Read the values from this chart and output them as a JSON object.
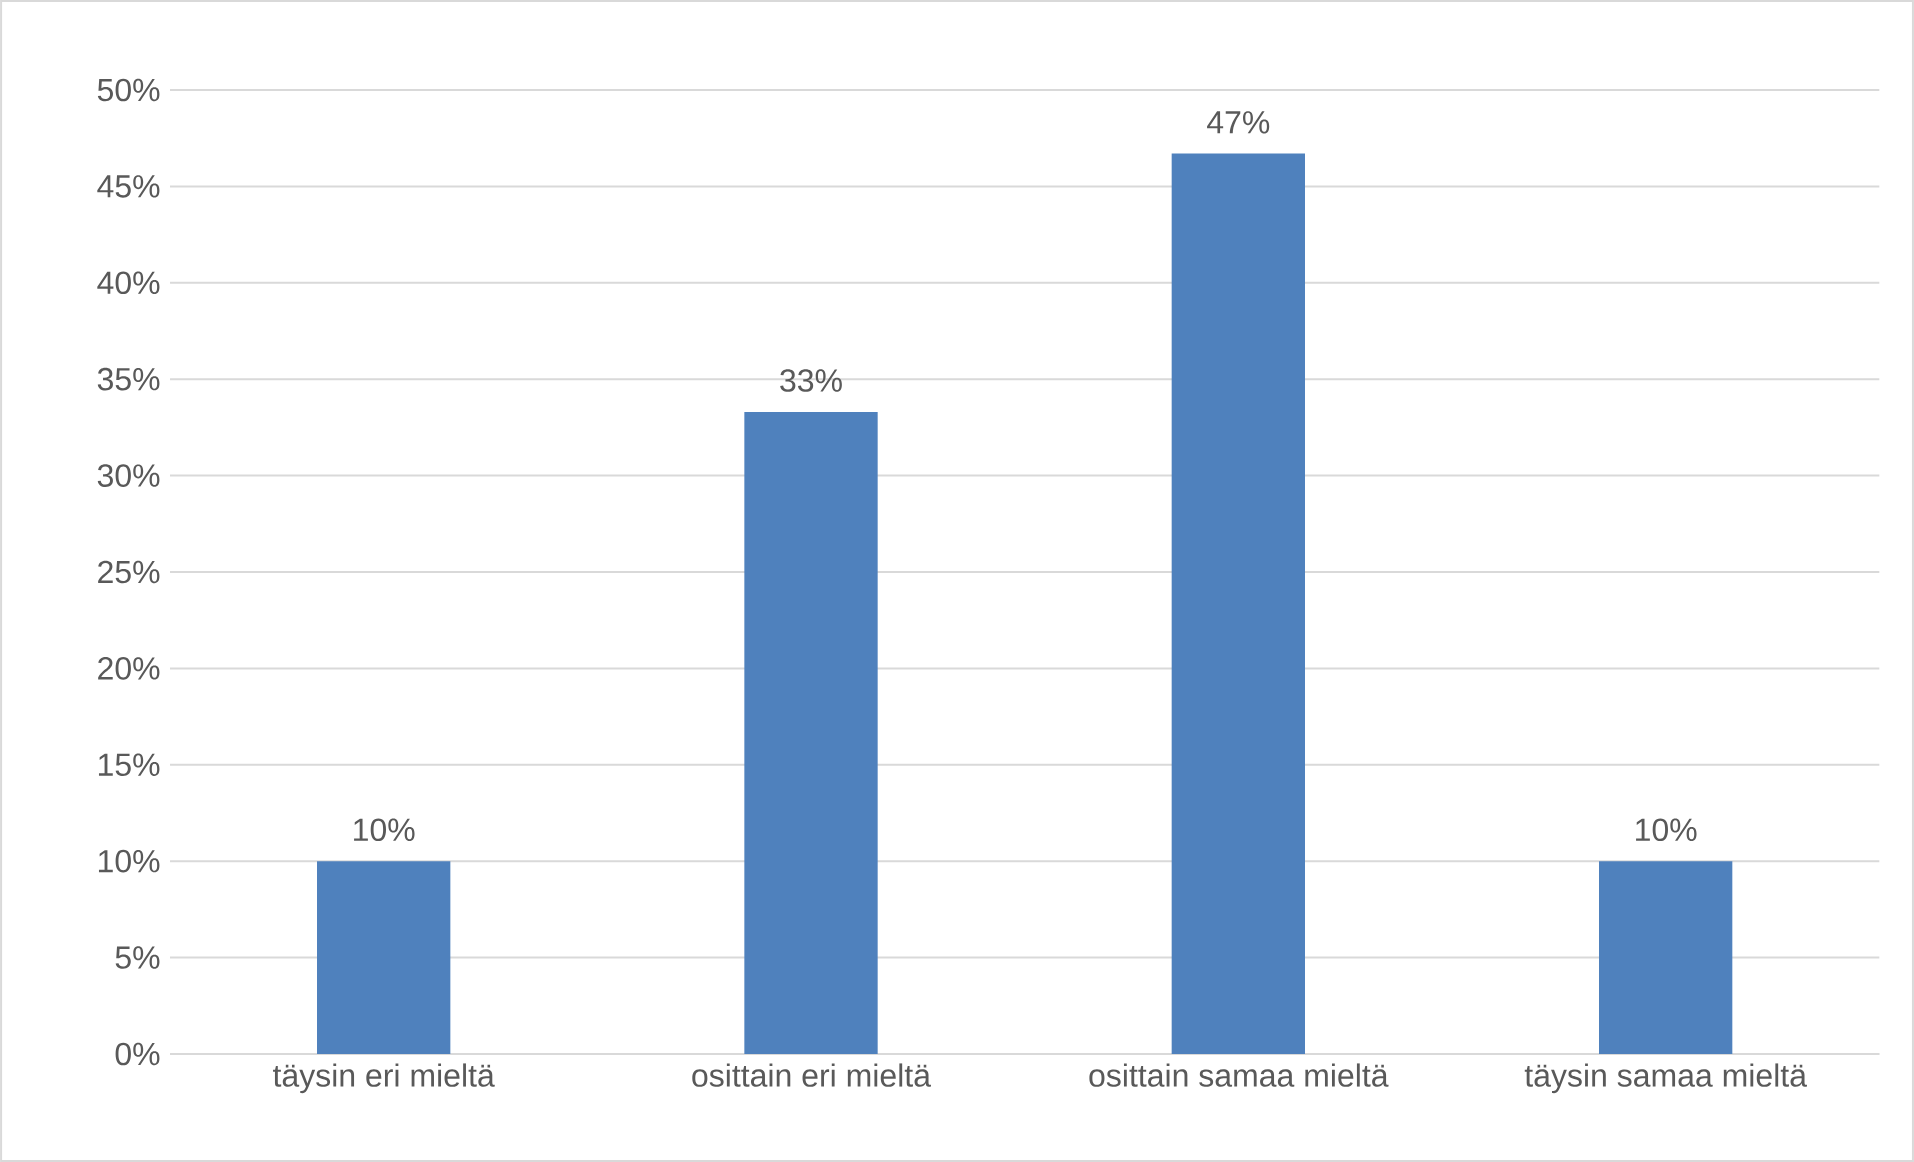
{
  "chart_data": {
    "type": "bar",
    "categories": [
      "täysin eri mieltä",
      "osittain eri mieltä",
      "osittain samaa mieltä",
      "täysin samaa mieltä"
    ],
    "values": [
      10,
      33.3,
      46.7,
      10
    ],
    "value_labels": [
      "10%",
      "33%",
      "47%",
      "10%"
    ],
    "color": "#4f81bd",
    "ylim": [
      0,
      50
    ],
    "yticks": [
      {
        "value": 0,
        "label": "0%"
      },
      {
        "value": 5,
        "label": "5%"
      },
      {
        "value": 10,
        "label": "10%"
      },
      {
        "value": 15,
        "label": "15%"
      },
      {
        "value": 20,
        "label": "20%"
      },
      {
        "value": 25,
        "label": "25%"
      },
      {
        "value": 30,
        "label": "30%"
      },
      {
        "value": 35,
        "label": "35%"
      },
      {
        "value": 40,
        "label": "40%"
      },
      {
        "value": 45,
        "label": "45%"
      },
      {
        "value": 50,
        "label": "50%"
      }
    ],
    "grid": "y"
  }
}
